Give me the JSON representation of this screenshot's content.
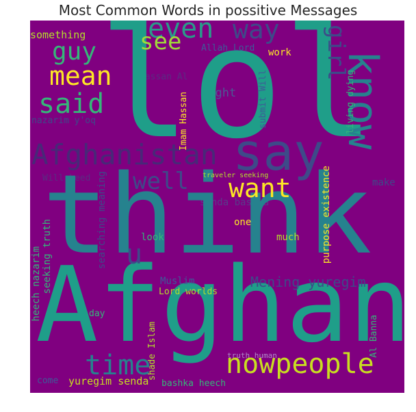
{
  "title": "Most Common Words in possitive Messages",
  "words": {
    "lol": "lol",
    "think": "think",
    "afghan": "Afghan",
    "say": "say",
    "know": "know",
    "afghanistan": "Afghanistan",
    "nowpeople": "nowpeople",
    "time": "time",
    "mean": "mean",
    "said": "said",
    "guy": "guy",
    "even": "even",
    "way": "way",
    "see": "see",
    "girl": "girl",
    "want": "want",
    "well": "well",
    "u": "u",
    "mening_yuregim": "Mening yuregim",
    "something": "something",
    "allah_lord": "Allah Lord",
    "work": "work",
    "hassan_al": "Hassan Al",
    "right": "right",
    "submit_will": "submit Will",
    "living_dying": "living dying",
    "nazarim_yoq": "nazarim y'oq",
    "imam_hassan": "Imam Hassan",
    "traveler_seeking": "traveler seeking",
    "make": "make",
    "will_heed": "Will heed",
    "senda_bashka": "senda bashka",
    "one": "one",
    "purpose_existence": "purpose existence",
    "searching_meaning": "searching meaning",
    "seeking_truth": "seeking truth",
    "look": "look",
    "much": "much",
    "heech_nazarim": "heech nazarim",
    "muslim": "Muslim",
    "lord_worlds": "Lord worlds",
    "day": "day",
    "shade_islam": "shade Islam",
    "al_banna": "Al Banna",
    "truth_human": "truth human",
    "come": "come",
    "yuregim_senda": "yuregim senda",
    "bashka_heech": "bashka heech"
  },
  "colors": {
    "background": "#800080",
    "teal": "#1f9e89",
    "green": "#35b779",
    "yellow": "#fde725",
    "lime": "#b5de2b",
    "blue": "#31688e",
    "darkblue": "#3e4a89",
    "indigo": "#482878",
    "cyan": "#26828e"
  }
}
